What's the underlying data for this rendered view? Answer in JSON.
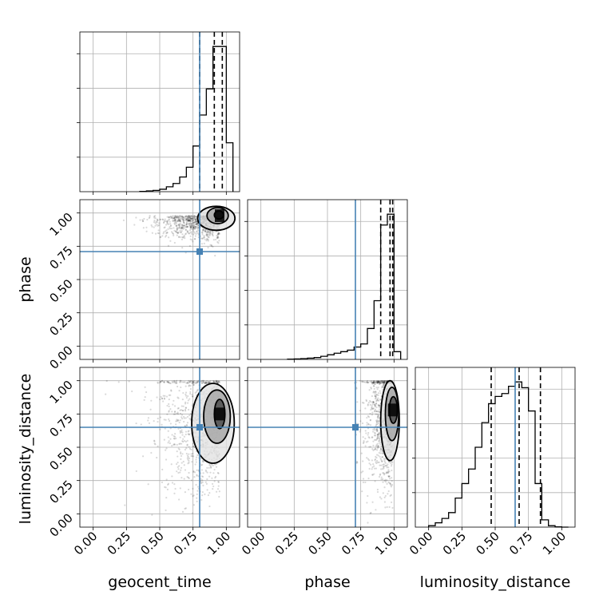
{
  "chart_data": {
    "type": "corner",
    "parameters": [
      "geocent_time",
      "phase",
      "luminosity_distance"
    ],
    "axis_range": [
      -0.1,
      1.1
    ],
    "tick_values": [
      0.0,
      0.25,
      0.5,
      0.75,
      1.0
    ],
    "tick_labels": [
      "0.00",
      "0.25",
      "0.50",
      "0.75",
      "1.00"
    ],
    "truth_color": "#4682b4",
    "grid": true,
    "truths": {
      "geocent_time": 0.8,
      "phase": 0.71,
      "luminosity_distance": 0.65
    },
    "quantiles": {
      "geocent_time": [
        0.8,
        0.91,
        0.97
      ],
      "phase": [
        0.9,
        0.97,
        0.99
      ],
      "luminosity_distance": [
        0.47,
        0.68,
        0.84
      ]
    },
    "histograms": {
      "geocent_time": {
        "bin_edges": [
          0.35,
          0.4,
          0.45,
          0.5,
          0.55,
          0.6,
          0.65,
          0.7,
          0.75,
          0.8,
          0.85,
          0.9,
          0.95,
          1.0,
          1.05
        ],
        "counts": [
          0.002,
          0.005,
          0.008,
          0.015,
          0.03,
          0.05,
          0.09,
          0.15,
          0.28,
          0.47,
          0.63,
          0.89,
          0.89,
          0.3
        ]
      },
      "phase": {
        "bin_edges": [
          0.2,
          0.25,
          0.3,
          0.35,
          0.4,
          0.45,
          0.5,
          0.55,
          0.6,
          0.65,
          0.7,
          0.75,
          0.8,
          0.85,
          0.9,
          0.95,
          1.0,
          1.05
        ],
        "counts": [
          0.002,
          0.003,
          0.005,
          0.008,
          0.012,
          0.02,
          0.03,
          0.04,
          0.05,
          0.06,
          0.08,
          0.1,
          0.2,
          0.38,
          0.87,
          0.94,
          0.05
        ]
      },
      "luminosity_distance": {
        "bin_edges": [
          0.0,
          0.05,
          0.1,
          0.15,
          0.2,
          0.25,
          0.3,
          0.35,
          0.4,
          0.45,
          0.5,
          0.55,
          0.6,
          0.65,
          0.7,
          0.75,
          0.8,
          0.85,
          0.9,
          0.95,
          1.0,
          1.05
        ],
        "counts": [
          0.01,
          0.03,
          0.06,
          0.1,
          0.2,
          0.3,
          0.4,
          0.55,
          0.72,
          0.85,
          0.9,
          0.92,
          0.97,
          1.0,
          0.96,
          0.8,
          0.3,
          0.05,
          0.01,
          0.002,
          0.0
        ]
      }
    },
    "contours_2d": {
      "phase_vs_geocent_time": {
        "peak": [
          0.95,
          0.98
        ],
        "levels": [
          {
            "cx": 0.945,
            "cy": 0.985,
            "rx": 0.035,
            "ry": 0.03
          },
          {
            "cx": 0.935,
            "cy": 0.98,
            "rx": 0.08,
            "ry": 0.06
          },
          {
            "cx": 0.925,
            "cy": 0.96,
            "rx": 0.14,
            "ry": 0.09
          }
        ]
      },
      "luminosity_distance_vs_geocent_time": {
        "peak": [
          0.95,
          0.75
        ],
        "levels": [
          {
            "cx": 0.95,
            "cy": 0.75,
            "rx": 0.04,
            "ry": 0.11
          },
          {
            "cx": 0.93,
            "cy": 0.73,
            "rx": 0.1,
            "ry": 0.2
          },
          {
            "cx": 0.9,
            "cy": 0.68,
            "rx": 0.16,
            "ry": 0.3
          }
        ]
      },
      "luminosity_distance_vs_phase": {
        "peak": [
          0.99,
          0.78
        ],
        "levels": [
          {
            "cx": 0.995,
            "cy": 0.78,
            "rx": 0.03,
            "ry": 0.1
          },
          {
            "cx": 0.985,
            "cy": 0.75,
            "rx": 0.05,
            "ry": 0.2
          },
          {
            "cx": 0.97,
            "cy": 0.7,
            "rx": 0.07,
            "ry": 0.3
          }
        ]
      }
    }
  }
}
